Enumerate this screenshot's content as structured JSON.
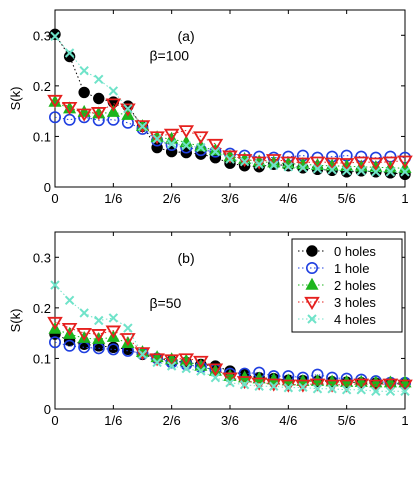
{
  "chart_data": [
    {
      "type": "scatter",
      "panel_label": "(a)",
      "annotation": "β=100",
      "ylabel": "S(k)",
      "xlabel": "",
      "xlim": [
        0,
        1
      ],
      "ylim": [
        0,
        0.35
      ],
      "x_ticks": [
        0,
        0.1667,
        0.3333,
        0.5,
        0.6667,
        0.8333,
        1
      ],
      "x_tick_labels": [
        "0",
        "1/6",
        "2/6",
        "3/6",
        "4/6",
        "5/6",
        "1"
      ],
      "y_ticks": [
        0,
        0.1,
        0.2,
        0.3
      ],
      "y_tick_labels": [
        "0",
        "0.1",
        "0.2",
        "0.3"
      ],
      "grid": false,
      "legend": false,
      "x": [
        0,
        0.0417,
        0.0833,
        0.125,
        0.1667,
        0.2083,
        0.25,
        0.2917,
        0.3333,
        0.375,
        0.4167,
        0.4583,
        0.5,
        0.5417,
        0.5833,
        0.625,
        0.6667,
        0.7083,
        0.75,
        0.7917,
        0.8333,
        0.875,
        0.9167,
        0.9583,
        1
      ],
      "series": [
        {
          "name": "0 holes",
          "values": [
            0.302,
            0.258,
            0.187,
            0.175,
            0.168,
            0.16,
            0.12,
            0.078,
            0.07,
            0.068,
            0.065,
            0.058,
            0.047,
            0.042,
            0.04,
            0.045,
            0.042,
            0.038,
            0.035,
            0.033,
            0.03,
            0.032,
            0.03,
            0.028,
            0.025
          ]
        },
        {
          "name": "1 hole",
          "values": [
            0.138,
            0.133,
            0.138,
            0.132,
            0.133,
            0.127,
            0.115,
            0.092,
            0.083,
            0.078,
            0.073,
            0.07,
            0.066,
            0.062,
            0.06,
            0.058,
            0.06,
            0.062,
            0.058,
            0.06,
            0.062,
            0.06,
            0.058,
            0.06,
            0.058
          ]
        },
        {
          "name": "2 holes",
          "values": [
            0.168,
            0.155,
            0.148,
            0.145,
            0.148,
            0.142,
            0.12,
            0.098,
            0.095,
            0.088,
            0.08,
            0.072,
            0.06,
            0.055,
            0.05,
            0.048,
            0.046,
            0.045,
            0.043,
            0.042,
            0.041,
            0.04,
            0.039,
            0.038,
            0.037
          ]
        },
        {
          "name": "3 holes",
          "values": [
            0.172,
            0.158,
            0.145,
            0.148,
            0.165,
            0.155,
            0.122,
            0.1,
            0.105,
            0.112,
            0.1,
            0.085,
            0.062,
            0.055,
            0.05,
            0.055,
            0.05,
            0.048,
            0.05,
            0.048,
            0.047,
            0.05,
            0.048,
            0.05,
            0.052
          ]
        },
        {
          "name": "4 holes",
          "values": [
            0.298,
            0.265,
            0.23,
            0.213,
            0.19,
            0.155,
            0.12,
            0.095,
            0.085,
            0.082,
            0.078,
            0.07,
            0.055,
            0.05,
            0.045,
            0.043,
            0.04,
            0.038,
            0.036,
            0.034,
            0.032,
            0.032,
            0.03,
            0.03,
            0.03
          ]
        }
      ]
    },
    {
      "type": "scatter",
      "panel_label": "(b)",
      "annotation": "β=50",
      "ylabel": "S(k)",
      "xlabel": "",
      "xlim": [
        0,
        1
      ],
      "ylim": [
        0,
        0.35
      ],
      "x_ticks": [
        0,
        0.1667,
        0.3333,
        0.5,
        0.6667,
        0.8333,
        1
      ],
      "x_tick_labels": [
        "0",
        "1/6",
        "2/6",
        "3/6",
        "4/6",
        "5/6",
        "1"
      ],
      "y_ticks": [
        0,
        0.1,
        0.2,
        0.3
      ],
      "y_tick_labels": [
        "0",
        "0.1",
        "0.2",
        "0.3"
      ],
      "grid": false,
      "legend": "top-right",
      "x": [
        0,
        0.0417,
        0.0833,
        0.125,
        0.1667,
        0.2083,
        0.25,
        0.2917,
        0.3333,
        0.375,
        0.4167,
        0.4583,
        0.5,
        0.5417,
        0.5833,
        0.625,
        0.6667,
        0.7083,
        0.75,
        0.7917,
        0.8333,
        0.875,
        0.9167,
        0.9583,
        1
      ],
      "series": [
        {
          "name": "0 holes",
          "values": [
            0.148,
            0.135,
            0.128,
            0.125,
            0.122,
            0.118,
            0.108,
            0.1,
            0.095,
            0.092,
            0.088,
            0.085,
            0.075,
            0.068,
            0.062,
            0.06,
            0.057,
            0.056,
            0.055,
            0.054,
            0.053,
            0.052,
            0.051,
            0.05,
            0.05
          ]
        },
        {
          "name": "1 hole",
          "values": [
            0.132,
            0.125,
            0.122,
            0.12,
            0.118,
            0.115,
            0.11,
            0.1,
            0.092,
            0.088,
            0.083,
            0.078,
            0.07,
            0.07,
            0.072,
            0.065,
            0.065,
            0.062,
            0.068,
            0.062,
            0.06,
            0.058,
            0.055,
            0.052,
            0.052
          ]
        },
        {
          "name": "2 holes",
          "values": [
            0.158,
            0.148,
            0.14,
            0.138,
            0.142,
            0.13,
            0.112,
            0.102,
            0.098,
            0.095,
            0.085,
            0.075,
            0.065,
            0.062,
            0.06,
            0.058,
            0.056,
            0.055,
            0.055,
            0.054,
            0.053,
            0.053,
            0.052,
            0.052,
            0.052
          ]
        },
        {
          "name": "3 holes",
          "values": [
            0.172,
            0.16,
            0.15,
            0.148,
            0.155,
            0.14,
            0.112,
            0.1,
            0.098,
            0.1,
            0.095,
            0.08,
            0.062,
            0.055,
            0.052,
            0.05,
            0.048,
            0.048,
            0.05,
            0.048,
            0.048,
            0.05,
            0.048,
            0.05,
            0.048
          ]
        },
        {
          "name": "4 holes",
          "values": [
            0.245,
            0.215,
            0.19,
            0.175,
            0.18,
            0.16,
            0.108,
            0.092,
            0.085,
            0.08,
            0.075,
            0.062,
            0.052,
            0.048,
            0.045,
            0.045,
            0.042,
            0.043,
            0.04,
            0.04,
            0.038,
            0.038,
            0.035,
            0.035,
            0.035
          ]
        }
      ]
    }
  ],
  "series_styles": [
    {
      "color": "#000000",
      "marker": "circle-filled"
    },
    {
      "color": "#1f3fe0",
      "marker": "circle-open"
    },
    {
      "color": "#1db51d",
      "marker": "triangle-up-filled"
    },
    {
      "color": "#e5201e",
      "marker": "triangle-down-open"
    },
    {
      "color": "#6fe3c9",
      "marker": "cross"
    }
  ]
}
